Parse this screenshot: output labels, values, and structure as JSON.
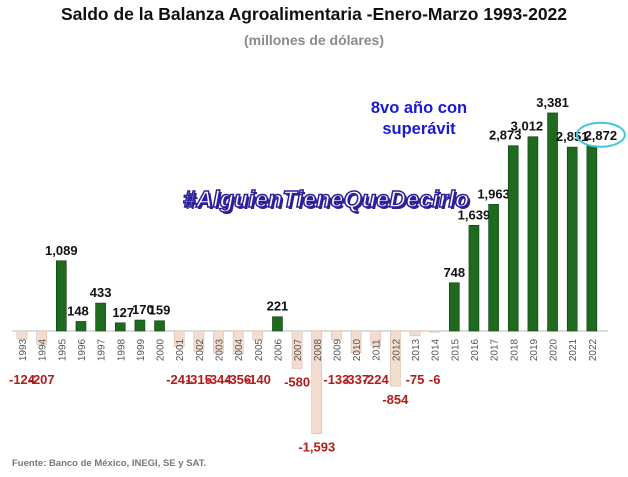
{
  "chart_data": {
    "type": "bar",
    "title": "Saldo de la Balanza Agroalimentaria -Enero-Marzo 1993-2022",
    "subtitle": "(millones de dólares)",
    "categories": [
      "1993",
      "1994",
      "1995",
      "1996",
      "1997",
      "1998",
      "1999",
      "2000",
      "2001",
      "2002",
      "2003",
      "2004",
      "2005",
      "2006",
      "2007",
      "2008",
      "2009",
      "2010",
      "2011",
      "2012",
      "2013",
      "2014",
      "2015",
      "2016",
      "2017",
      "2018",
      "2019",
      "2020",
      "2021",
      "2022"
    ],
    "values": [
      -124,
      -207,
      1089,
      148,
      433,
      127,
      170,
      159,
      -241,
      -315,
      -344,
      -356,
      -140,
      221,
      -580,
      -1593,
      -133,
      -337,
      -224,
      -854,
      -75,
      -6,
      748,
      1639,
      1963,
      2873,
      3012,
      3381,
      2851,
      2872
    ],
    "labels": [
      "-124",
      "-207",
      "1,089",
      "148",
      "433",
      "127",
      "170",
      "159",
      "-241",
      "-315",
      "-344",
      "-356",
      "-140",
      "221",
      "-580",
      "-1,593",
      "-133",
      "-337",
      "-224",
      "-854",
      "-75",
      "-6",
      "748",
      "1,639",
      "1,963",
      "2,873",
      "3,012",
      "3,381",
      "2,851",
      "2,872"
    ],
    "positive_color": "#1e6a1e",
    "negative_color": "#f3ddd0",
    "positive_label_color": "#111111",
    "negative_label_color": "#b31b1b",
    "highlight_index": 29,
    "highlight_color": "#43c6d8",
    "annotation": "8vo año con superávit",
    "hashtag": "#AlguienTieneQueDecirlo",
    "source": "Fuente: Banco de México, INEGI, SE y SAT."
  }
}
